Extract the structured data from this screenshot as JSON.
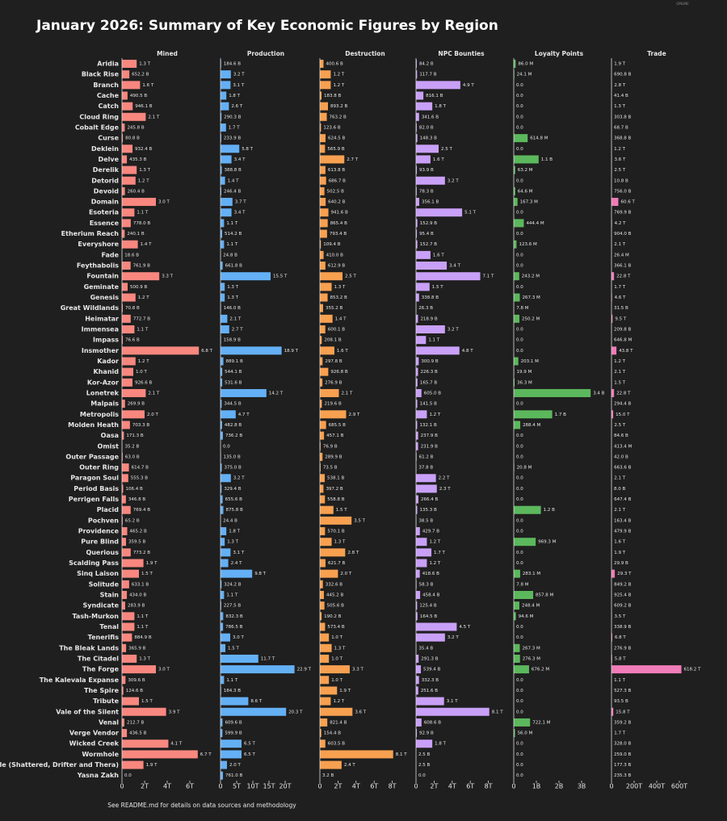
{
  "chart_data": {
    "type": "bar",
    "title": "January 2026: Summary of Key Economic Figures by Region",
    "footnote": "See README.md for details on data sources and methodology",
    "watermark": "GMLINE",
    "categories": [
      "Aridia",
      "Black Rise",
      "Branch",
      "Cache",
      "Catch",
      "Cloud Ring",
      "Cobalt Edge",
      "Curse",
      "Deklein",
      "Delve",
      "Derelik",
      "Detorid",
      "Devoid",
      "Domain",
      "Esoteria",
      "Essence",
      "Etherium Reach",
      "Everyshore",
      "Fade",
      "Feythabolis",
      "Fountain",
      "Geminate",
      "Genesis",
      "Great Wildlands",
      "Heimatar",
      "Immensea",
      "Impass",
      "Insmother",
      "Kador",
      "Khanid",
      "Kor-Azor",
      "Lonetrek",
      "Malpais",
      "Metropolis",
      "Molden Heath",
      "Oasa",
      "Omist",
      "Outer Passage",
      "Outer Ring",
      "Paragon Soul",
      "Period Basis",
      "Perrigen Falls",
      "Placid",
      "Pochven",
      "Providence",
      "Pure Blind",
      "Querious",
      "Scalding Pass",
      "Sinq Laison",
      "Solitude",
      "Stain",
      "Syndicate",
      "Tash-Murkon",
      "Tenal",
      "Tenerifis",
      "The Bleak Lands",
      "The Citadel",
      "The Forge",
      "The Kalevala Expanse",
      "The Spire",
      "Tribute",
      "Vale of the Silent",
      "Venal",
      "Verge Vendor",
      "Wicked Creek",
      "Wormhole",
      "Wormhole (Shattered, Drifter and Thera)",
      "Yasna Zakh"
    ],
    "series": [
      {
        "name": "Mined",
        "color": "#f8877f",
        "xlim": [
          0,
          8
        ],
        "xticks": [
          0,
          {
            "value": 2,
            "label": "2T"
          },
          {
            "value": 4,
            "label": "4T"
          },
          {
            "value": 6,
            "label": "6T"
          }
        ],
        "values": [
          1.3,
          0.6522,
          1.6,
          0.4905,
          0.9461,
          2.1,
          0.2458,
          0.0808,
          0.9324,
          0.4353,
          1.3,
          1.2,
          0.2604,
          3.0,
          1.1,
          0.778,
          0.2401,
          1.4,
          0.0186,
          0.7619,
          3.3,
          0.5009,
          1.2,
          0.0708,
          0.7727,
          1.1,
          0.0766,
          6.8,
          1.2,
          1.0,
          0.9266,
          2.1,
          0.2699,
          2.0,
          0.7033,
          0.1713,
          0.0352,
          0.063,
          0.6147,
          0.5553,
          0.1064,
          0.3468,
          0.7694,
          0.0652,
          0.4652,
          0.3595,
          0.7732,
          1.9,
          1.5,
          0.6331,
          0.434,
          0.2839,
          1.1,
          1.1,
          0.8849,
          0.3659,
          1.3,
          3.0,
          0.3096,
          0.1246,
          1.5,
          3.9,
          0.2127,
          0.4365,
          4.1,
          6.7,
          1.9,
          0
        ],
        "value_labels": [
          "1.3 T",
          "652.2 B",
          "1.6 T",
          "490.5 B",
          "946.1 B",
          "2.1 T",
          "245.8 B",
          "80.8 B",
          "932.4 B",
          "435.3 B",
          "1.3 T",
          "1.2 T",
          "260.4 B",
          "3.0 T",
          "1.1 T",
          "778.0 B",
          "240.1 B",
          "1.4 T",
          "18.6 B",
          "761.9 B",
          "3.3 T",
          "500.9 B",
          "1.2 T",
          "70.8 B",
          "772.7 B",
          "1.1 T",
          "76.6 B",
          "6.8 T",
          "1.2 T",
          "1.0 T",
          "926.6 B",
          "2.1 T",
          "269.9 B",
          "2.0 T",
          "703.3 B",
          "171.3 B",
          "35.2 B",
          "63.0 B",
          "614.7 B",
          "555.3 B",
          "106.4 B",
          "346.8 B",
          "769.4 B",
          "65.2 B",
          "465.2 B",
          "359.5 B",
          "773.2 B",
          "1.9 T",
          "1.5 T",
          "633.1 B",
          "434.0 B",
          "283.9 B",
          "1.1 T",
          "1.1 T",
          "884.9 B",
          "365.9 B",
          "1.3 T",
          "3.0 T",
          "309.6 B",
          "124.6 B",
          "1.5 T",
          "3.9 T",
          "212.7 B",
          "436.5 B",
          "4.1 T",
          "6.7 T",
          "1.9 T",
          "0.0"
        ]
      },
      {
        "name": "Production",
        "color": "#64b0f5",
        "xlim": [
          0,
          28
        ],
        "xticks": [
          0,
          {
            "value": 5,
            "label": "5T"
          },
          {
            "value": 10,
            "label": "10T"
          },
          {
            "value": 15,
            "label": "15T"
          },
          {
            "value": 20,
            "label": "20T"
          }
        ],
        "values": [
          0.1846,
          3.2,
          3.1,
          1.8,
          2.6,
          0.2903,
          1.7,
          0.2339,
          5.8,
          3.4,
          0.3888,
          1.4,
          0.2464,
          3.7,
          3.4,
          1.1,
          0.5142,
          1.1,
          0.0248,
          0.6618,
          15.5,
          1.3,
          1.3,
          0.146,
          2.1,
          2.7,
          0.1589,
          18.9,
          0.8891,
          0.5441,
          0.5316,
          14.2,
          0.3445,
          4.7,
          0.4828,
          0.7362,
          0,
          0.135,
          0.375,
          3.2,
          0.3294,
          0.6556,
          0.8758,
          0.0244,
          1.8,
          1.3,
          3.1,
          2.4,
          9.8,
          0.3242,
          1.1,
          0.2275,
          0.8323,
          0.7865,
          3.0,
          1.5,
          11.7,
          22.9,
          1.1,
          0.1843,
          8.6,
          20.3,
          0.6096,
          0.5999,
          6.5,
          6.5,
          2.0,
          0.761
        ],
        "value_labels": [
          "184.6 B",
          "3.2 T",
          "3.1 T",
          "1.8 T",
          "2.6 T",
          "290.3 B",
          "1.7 T",
          "233.9 B",
          "5.8 T",
          "3.4 T",
          "388.8 B",
          "1.4 T",
          "246.4 B",
          "3.7 T",
          "3.4 T",
          "1.1 T",
          "514.2 B",
          "1.1 T",
          "24.8 B",
          "661.8 B",
          "15.5 T",
          "1.3 T",
          "1.3 T",
          "146.0 B",
          "2.1 T",
          "2.7 T",
          "158.9 B",
          "18.9 T",
          "889.1 B",
          "544.1 B",
          "531.6 B",
          "14.2 T",
          "344.5 B",
          "4.7 T",
          "482.8 B",
          "736.2 B",
          "0.0",
          "135.0 B",
          "375.0 B",
          "3.2 T",
          "329.4 B",
          "655.6 B",
          "875.8 B",
          "24.4 B",
          "1.8 T",
          "1.3 T",
          "3.1 T",
          "2.4 T",
          "9.8 T",
          "324.2 B",
          "1.1 T",
          "227.5 B",
          "832.3 B",
          "786.5 B",
          "3.0 T",
          "1.5 T",
          "11.7 T",
          "22.9 T",
          "1.1 T",
          "184.3 B",
          "8.6 T",
          "20.3 T",
          "609.6 B",
          "599.9 B",
          "6.5 T",
          "6.5 T",
          "2.0 T",
          "761.0 B"
        ]
      },
      {
        "name": "Destruction",
        "color": "#f7a050",
        "xlim": [
          0,
          10
        ],
        "xticks": [
          0,
          {
            "value": 2,
            "label": "2T"
          },
          {
            "value": 4,
            "label": "4T"
          },
          {
            "value": 6,
            "label": "6T"
          },
          {
            "value": 8,
            "label": "8T"
          }
        ],
        "values": [
          0.4006,
          1.2,
          1.2,
          0.1838,
          0.8932,
          0.7632,
          0.1236,
          0.6245,
          0.5659,
          2.7,
          0.6138,
          0.6867,
          0.5025,
          0.6402,
          0.9416,
          0.8654,
          0.7934,
          0.1094,
          0.41,
          0.6129,
          2.5,
          1.3,
          0.8532,
          0.3552,
          1.4,
          0.6001,
          0.2081,
          1.6,
          0.2978,
          0.9268,
          0.2769,
          2.1,
          0.2196,
          2.9,
          0.6855,
          0.4571,
          0.0769,
          0.2899,
          0.0735,
          0.5381,
          0.3972,
          0.5588,
          1.5,
          3.5,
          0.5701,
          1.3,
          2.8,
          0.6217,
          2.0,
          0.3326,
          0.4452,
          0.5056,
          0.1902,
          0.5734,
          1.0,
          1.3,
          1.0,
          3.3,
          1.0,
          1.9,
          1.2,
          3.6,
          0.8214,
          0.1544,
          0.6035,
          8.1,
          2.4,
          0.0032
        ],
        "value_labels": [
          "400.6 B",
          "1.2 T",
          "1.2 T",
          "183.8 B",
          "893.2 B",
          "763.2 B",
          "123.6 B",
          "624.5 B",
          "565.9 B",
          "2.7 T",
          "613.8 B",
          "686.7 B",
          "502.5 B",
          "640.2 B",
          "941.6 B",
          "865.4 B",
          "793.4 B",
          "109.4 B",
          "410.0 B",
          "612.9 B",
          "2.5 T",
          "1.3 T",
          "853.2 B",
          "355.2 B",
          "1.4 T",
          "600.1 B",
          "208.1 B",
          "1.6 T",
          "297.8 B",
          "926.8 B",
          "276.9 B",
          "2.1 T",
          "219.6 B",
          "2.9 T",
          "685.5 B",
          "457.1 B",
          "76.9 B",
          "289.9 B",
          "73.5 B",
          "538.1 B",
          "397.2 B",
          "558.8 B",
          "1.5 T",
          "3.5 T",
          "570.1 B",
          "1.3 T",
          "2.8 T",
          "621.7 B",
          "2.0 T",
          "332.6 B",
          "445.2 B",
          "505.6 B",
          "190.2 B",
          "573.4 B",
          "1.0 T",
          "1.3 T",
          "1.0 T",
          "3.3 T",
          "1.0 T",
          "1.9 T",
          "1.2 T",
          "3.6 T",
          "821.4 B",
          "154.4 B",
          "603.5 B",
          "8.1 T",
          "2.4 T",
          "3.2 B"
        ]
      },
      {
        "name": "NPC Bounties",
        "color": "#c9a0f7",
        "xlim": [
          0,
          10
        ],
        "xticks": [
          0,
          {
            "value": 2,
            "label": "2T"
          },
          {
            "value": 4,
            "label": "4T"
          },
          {
            "value": 6,
            "label": "6T"
          },
          {
            "value": 8,
            "label": "8T"
          }
        ],
        "values": [
          0.0842,
          0.1177,
          4.9,
          0.8161,
          1.8,
          0.3416,
          0.082,
          0.1483,
          2.5,
          1.6,
          0.0939,
          3.2,
          0.0783,
          0.3561,
          5.1,
          0.1529,
          0.0954,
          0.1527,
          1.6,
          3.4,
          7.1,
          1.5,
          0.3388,
          0.0263,
          0.2189,
          3.2,
          1.1,
          4.8,
          0.3009,
          0.2263,
          0.1657,
          0.605,
          0.1415,
          1.2,
          0.1321,
          0.2379,
          0.2319,
          0.0612,
          0.0378,
          2.2,
          2.3,
          0.2664,
          0.1353,
          0.0385,
          0.4297,
          1.2,
          1.7,
          1.2,
          0.4186,
          0.0583,
          0.4584,
          0.1254,
          0.1645,
          4.5,
          3.2,
          0.0354,
          0.2913,
          0.5394,
          0.3323,
          0.2516,
          3.1,
          8.1,
          0.6086,
          0.0929,
          1.8,
          0.0025,
          0.0025,
          0
        ],
        "value_labels": [
          "84.2 B",
          "117.7 B",
          "4.9 T",
          "816.1 B",
          "1.8 T",
          "341.6 B",
          "82.0 B",
          "148.3 B",
          "2.5 T",
          "1.6 T",
          "93.9 B",
          "3.2 T",
          "78.3 B",
          "356.1 B",
          "5.1 T",
          "152.9 B",
          "95.4 B",
          "152.7 B",
          "1.6 T",
          "3.4 T",
          "7.1 T",
          "1.5 T",
          "338.8 B",
          "26.3 B",
          "218.9 B",
          "3.2 T",
          "1.1 T",
          "4.8 T",
          "300.9 B",
          "226.3 B",
          "165.7 B",
          "605.0 B",
          "141.5 B",
          "1.2 T",
          "132.1 B",
          "237.9 B",
          "231.9 B",
          "61.2 B",
          "37.8 B",
          "2.2 T",
          "2.3 T",
          "266.4 B",
          "135.3 B",
          "38.5 B",
          "429.7 B",
          "1.2 T",
          "1.7 T",
          "1.2 T",
          "418.6 B",
          "58.3 B",
          "458.4 B",
          "125.4 B",
          "164.5 B",
          "4.5 T",
          "3.2 T",
          "35.4 B",
          "291.3 B",
          "539.4 B",
          "332.3 B",
          "251.6 B",
          "3.1 T",
          "8.1 T",
          "608.6 B",
          "92.9 B",
          "1.8 T",
          "2.5 B",
          "2.5 B",
          "0.0"
        ]
      },
      {
        "name": "Loyalty Points",
        "color": "#5cb85c",
        "xlim": [
          0,
          4
        ],
        "xticks": [
          0,
          {
            "value": 1,
            "label": "1B"
          },
          {
            "value": 2,
            "label": "2B"
          },
          {
            "value": 3,
            "label": "3B"
          }
        ],
        "values": [
          0.086,
          0.0241,
          0,
          0,
          0,
          0,
          0,
          0.6148,
          0,
          1.1,
          0.0632,
          0,
          0.0646,
          0.1673,
          0,
          0.4444,
          0,
          0.1236,
          0,
          0,
          0.2432,
          0,
          0.2673,
          0.0078,
          0.2502,
          0,
          0,
          0,
          0.2031,
          0.0199,
          0.0363,
          3.4,
          0,
          1.7,
          0.2884,
          0,
          0,
          0,
          0.0208,
          0,
          0,
          0,
          1.2,
          0,
          0,
          0.9693,
          0,
          0,
          0.2831,
          0.0078,
          0.8578,
          0.2484,
          0.0946,
          0,
          0,
          0.2673,
          0.2763,
          0.6762,
          0,
          0,
          0,
          0,
          0.7221,
          0.056,
          0,
          0,
          0,
          0
        ],
        "value_labels": [
          "86.0 M",
          "24.1 M",
          "0.0",
          "0.0",
          "0.0",
          "0.0",
          "0.0",
          "614.8 M",
          "0.0",
          "1.1 B",
          "63.2 M",
          "0.0",
          "64.6 M",
          "167.3 M",
          "0.0",
          "444.4 M",
          "0.0",
          "123.6 M",
          "0.0",
          "0.0",
          "243.2 M",
          "0.0",
          "267.3 M",
          "7.8 M",
          "250.2 M",
          "0.0",
          "0.0",
          "0.0",
          "203.1 M",
          "19.9 M",
          "36.3 M",
          "3.4 B",
          "0.0",
          "1.7 B",
          "288.4 M",
          "0.0",
          "0.0",
          "0.0",
          "20.8 M",
          "0.0",
          "0.0",
          "0.0",
          "1.2 B",
          "0.0",
          "0.0",
          "969.3 M",
          "0.0",
          "0.0",
          "283.1 M",
          "7.8 M",
          "857.8 M",
          "248.4 M",
          "94.6 M",
          "0.0",
          "0.0",
          "267.3 M",
          "276.3 M",
          "676.2 M",
          "0.0",
          "0.0",
          "0.0",
          "0.0",
          "722.1 M",
          "56.0 M",
          "0.0",
          "0.0",
          "0.0",
          "0.0"
        ]
      },
      {
        "name": "Trade",
        "color": "#f07cb8",
        "xlim": [
          0,
          800
        ],
        "xticks": [
          0,
          {
            "value": 200,
            "label": "200T"
          },
          {
            "value": 400,
            "label": "400T"
          },
          {
            "value": 600,
            "label": "600T"
          }
        ],
        "values": [
          1.9,
          0.6908,
          2.8,
          0.0414,
          1.3,
          0.3038,
          0.0687,
          0.3688,
          1.2,
          3.6,
          2.5,
          0.0108,
          0.756,
          60.6,
          0.7699,
          4.2,
          0.904,
          2.1,
          2.64e-05,
          0.3661,
          22.8,
          1.7,
          4.6,
          0.0315,
          9.5,
          0.2098,
          0.0006468,
          43.8,
          1.2,
          2.1,
          1.5,
          22.8,
          0.2944,
          15.0,
          2.5,
          0.0846,
          0.0004134,
          0.042,
          0.6636,
          2.1,
          0.008,
          0.6474,
          2.1,
          0.1634,
          0.4799,
          1.6,
          1.9,
          0.0299,
          29.3,
          0.8492,
          0.9254,
          0.6092,
          3.5,
          0.3389,
          6.8,
          0.2769,
          5.8,
          618.2,
          1.1,
          0.5273,
          0.0935,
          15.8,
          0.3592,
          1.7,
          0.328,
          0.259,
          0.1773,
          0.2353
        ],
        "value_labels": [
          "1.9 T",
          "690.8 B",
          "2.8 T",
          "41.4 B",
          "1.3 T",
          "303.8 B",
          "68.7 B",
          "368.8 B",
          "1.2 T",
          "3.6 T",
          "2.5 T",
          "10.8 B",
          "756.0 B",
          "60.6 T",
          "769.9 B",
          "4.2 T",
          "904.0 B",
          "2.1 T",
          "26.4 M",
          "366.1 B",
          "22.8 T",
          "1.7 T",
          "4.6 T",
          "31.5 B",
          "9.5 T",
          "209.8 B",
          "646.8 M",
          "43.8 T",
          "1.2 T",
          "2.1 T",
          "1.5 T",
          "22.8 T",
          "294.4 B",
          "15.0 T",
          "2.5 T",
          "84.6 B",
          "413.4 M",
          "42.0 B",
          "663.6 B",
          "2.1 T",
          "8.0 B",
          "647.4 B",
          "2.1 T",
          "163.4 B",
          "479.9 B",
          "1.6 T",
          "1.9 T",
          "29.9 B",
          "29.3 T",
          "849.2 B",
          "925.4 B",
          "609.2 B",
          "3.5 T",
          "338.9 B",
          "6.8 T",
          "276.9 B",
          "5.8 T",
          "618.2 T",
          "1.1 T",
          "527.3 B",
          "93.5 B",
          "15.8 T",
          "359.2 B",
          "1.7 T",
          "328.0 B",
          "259.0 B",
          "177.3 B",
          "235.3 B"
        ]
      }
    ]
  }
}
